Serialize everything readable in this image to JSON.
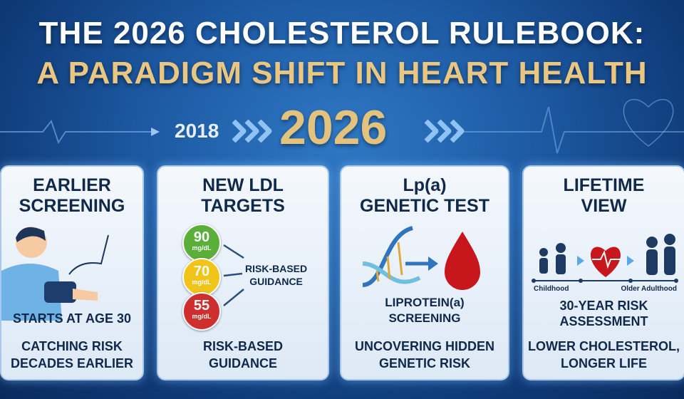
{
  "header": {
    "title_lines": [
      "THE 2026 CHOLESTEROL RULEBOOK:",
      "A PARADIGM SHIFT IN HEART HEALTH"
    ]
  },
  "timeline": {
    "from": "2018",
    "to": "2026"
  },
  "cards": [
    {
      "title_lines": [
        "EARLIER",
        "SCREENING"
      ],
      "detail_lines": [
        "STARTS AT AGE 30"
      ],
      "summary_lines": [
        "CATCHING RISK",
        "DECADES EARLIER"
      ]
    },
    {
      "title_lines": [
        "NEW LDL",
        "TARGETS"
      ],
      "targets": [
        {
          "value": "90",
          "unit": "mg/dL"
        },
        {
          "value": "70",
          "unit": "mg/dL"
        },
        {
          "value": "55",
          "unit": "mg/dL"
        }
      ],
      "side_lines": [
        "RISK-BASED",
        "GUIDANCE"
      ],
      "summary_lines": [
        "RISK-BASED",
        "GUIDANCE"
      ]
    },
    {
      "title_lines": [
        "Lp(a)",
        "GENETIC TEST"
      ],
      "detail_lines": [
        "LIPROTEIN(a)",
        "SCREENING"
      ],
      "summary_lines": [
        "UNCOVERING HIDDEN",
        "GENETIC RISK"
      ]
    },
    {
      "title_lines": [
        "LIFETIME",
        "VIEW"
      ],
      "stages": [
        "Childhood",
        "Older Adulthood"
      ],
      "detail_lines": [
        "30-YEAR RISK",
        "ASSESSMENT"
      ],
      "summary_lines": [
        "LOWER CHOLESTEROL,",
        "LONGER LIFE"
      ]
    }
  ]
}
